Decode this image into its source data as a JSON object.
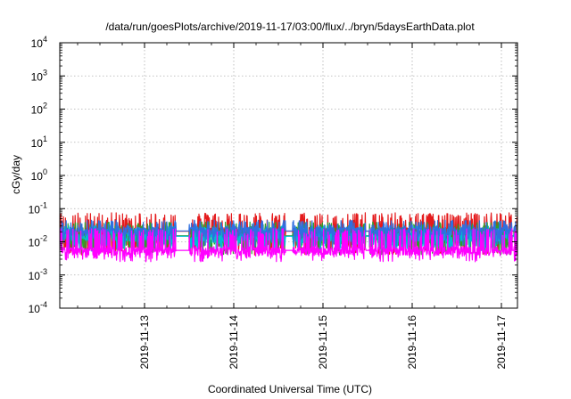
{
  "chart_data": {
    "type": "line",
    "title": "/data/run/goesPlots/archive/2019-11-17/03:00/flux/../bryn/5daysEarthData.plot",
    "xlabel": "Coordinated Universal Time (UTC)",
    "ylabel": "cGy/day",
    "yscale": "log",
    "ylim_exp": [
      -4,
      4
    ],
    "y_ticks": [
      {
        "base": "10",
        "exp": "4"
      },
      {
        "base": "10",
        "exp": "3"
      },
      {
        "base": "10",
        "exp": "2"
      },
      {
        "base": "10",
        "exp": "1"
      },
      {
        "base": "10",
        "exp": "0"
      },
      {
        "base": "10",
        "exp": "-1"
      },
      {
        "base": "10",
        "exp": "-2"
      },
      {
        "base": "10",
        "exp": "-3"
      },
      {
        "base": "10",
        "exp": "-4"
      }
    ],
    "x_ticks": [
      "2019-11-13",
      "2019-11-14",
      "2019-11-15",
      "2019-11-16",
      "2019-11-17"
    ],
    "xlim_days": [
      12.05,
      17.18
    ],
    "grid": true,
    "legend": "none",
    "data_gaps_days": [
      [
        13.35,
        13.5
      ],
      [
        14.58,
        14.66
      ],
      [
        15.48,
        15.52
      ],
      [
        17.12,
        17.14
      ]
    ],
    "series": [
      {
        "color": "#e41a1c",
        "envelope_cGy_day": [
          0.004,
          0.075
        ]
      },
      {
        "color": "#2ca02c",
        "envelope_cGy_day": [
          0.004,
          0.04
        ]
      },
      {
        "color": "#00bcd4",
        "envelope_cGy_day": [
          0.005,
          0.03
        ]
      },
      {
        "color": "#2f6fe0",
        "envelope_cGy_day": [
          0.007,
          0.045
        ]
      },
      {
        "color": "#ff00ff",
        "envelope_cGy_day": [
          0.0025,
          0.025
        ]
      }
    ]
  }
}
